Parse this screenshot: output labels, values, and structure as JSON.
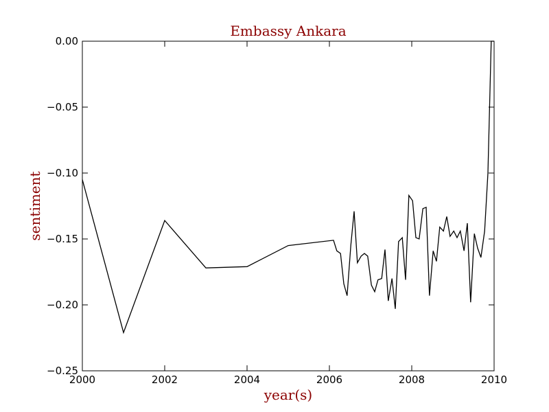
{
  "chart_data": {
    "type": "line",
    "title": "Embassy Ankara",
    "xlabel": "year(s)",
    "ylabel": "sentiment",
    "xlim": [
      2000,
      2010
    ],
    "ylim": [
      -0.25,
      0.0
    ],
    "xticks": [
      2000,
      2002,
      2004,
      2006,
      2008,
      2010
    ],
    "xtick_labels": [
      "2000",
      "2002",
      "2004",
      "2006",
      "2008",
      "2010"
    ],
    "yticks": [
      0.0,
      -0.05,
      -0.1,
      -0.15,
      -0.2,
      -0.25
    ],
    "ytick_labels": [
      "0.00",
      "−0.05",
      "−0.10",
      "−0.15",
      "−0.20",
      "−0.25"
    ],
    "grid": false,
    "colors": {
      "title": "#8b0000",
      "axis_label": "#8b0000",
      "line": "#000000"
    },
    "series": [
      {
        "x": [
          2000.0,
          2001.0,
          2002.0,
          2003.0,
          2004.0,
          2005.0,
          2006.1,
          2006.18,
          2006.27,
          2006.35,
          2006.43,
          2006.52,
          2006.6,
          2006.68,
          2006.77,
          2006.85,
          2006.93,
          2007.02,
          2007.1,
          2007.18,
          2007.27,
          2007.35,
          2007.43,
          2007.52,
          2007.6,
          2007.68,
          2007.77,
          2007.85,
          2007.93,
          2008.02,
          2008.1,
          2008.18,
          2008.27,
          2008.35,
          2008.43,
          2008.52,
          2008.6,
          2008.68,
          2008.77,
          2008.85,
          2008.93,
          2009.02,
          2009.1,
          2009.18,
          2009.27,
          2009.35,
          2009.43,
          2009.52,
          2009.6,
          2009.68,
          2009.77,
          2009.85,
          2009.93,
          2009.96,
          2010.0
        ],
        "y": [
          -0.105,
          -0.221,
          -0.136,
          -0.172,
          -0.171,
          -0.155,
          -0.151,
          -0.159,
          -0.161,
          -0.184,
          -0.193,
          -0.155,
          -0.129,
          -0.168,
          -0.163,
          -0.161,
          -0.163,
          -0.185,
          -0.19,
          -0.181,
          -0.18,
          -0.158,
          -0.197,
          -0.18,
          -0.203,
          -0.152,
          -0.149,
          -0.181,
          -0.117,
          -0.121,
          -0.149,
          -0.15,
          -0.127,
          -0.126,
          -0.193,
          -0.159,
          -0.167,
          -0.141,
          -0.144,
          -0.133,
          -0.148,
          -0.144,
          -0.149,
          -0.144,
          -0.159,
          -0.138,
          -0.198,
          -0.146,
          -0.157,
          -0.164,
          -0.144,
          -0.1,
          0.0,
          0.0,
          0.0
        ]
      }
    ]
  }
}
